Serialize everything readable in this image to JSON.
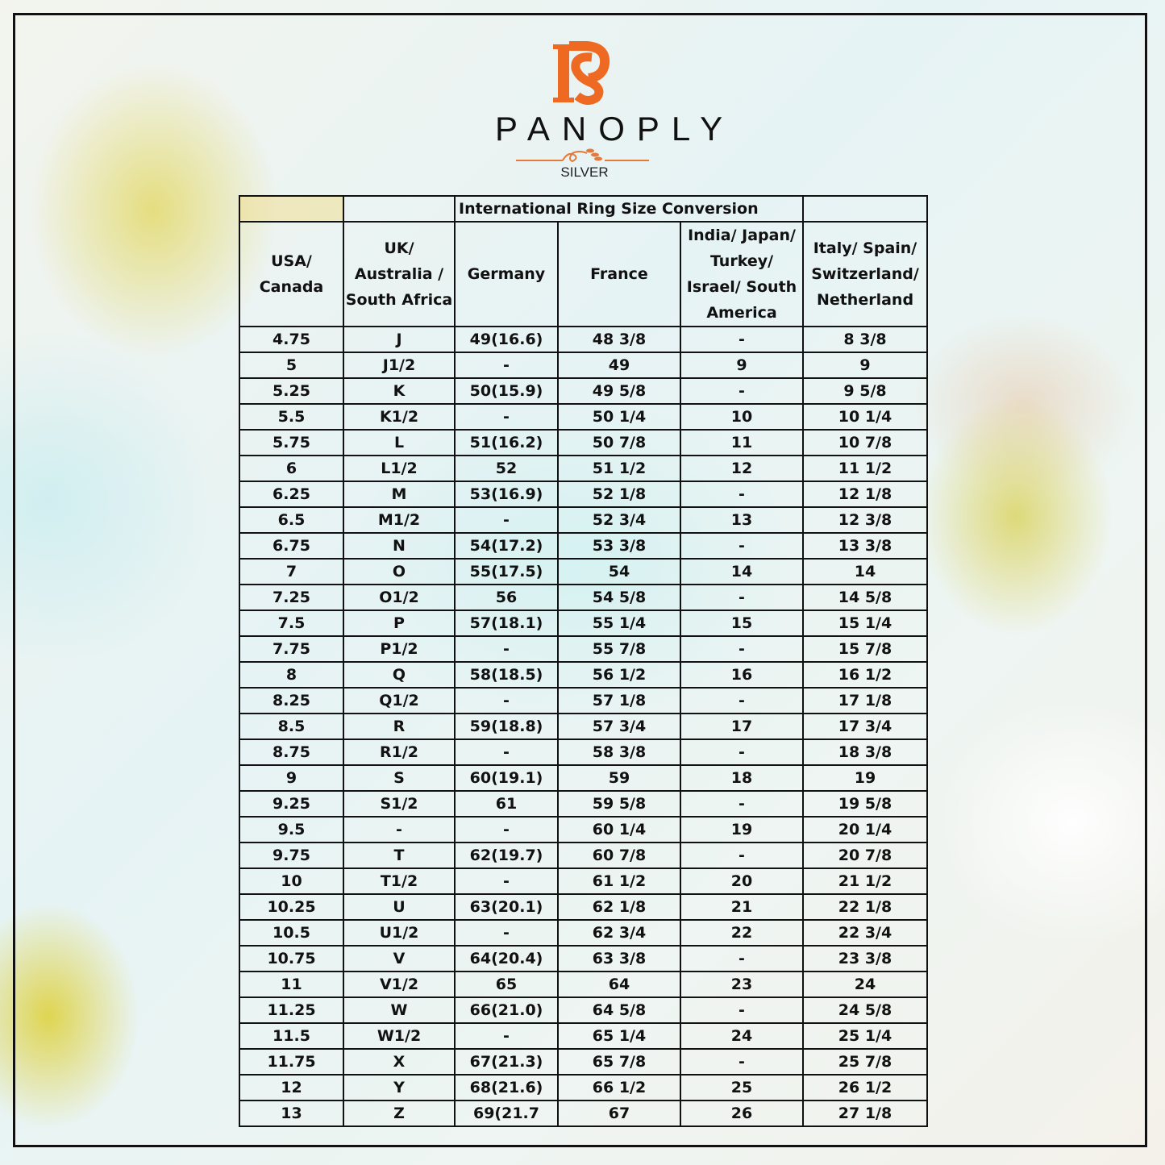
{
  "logo": {
    "monogram": "PS",
    "brand": "PANOPLY",
    "sub": "SILVER",
    "accent": "#ee6a23"
  },
  "table": {
    "title": "International Ring Size Conversion",
    "headers": [
      "USA/ Canada",
      "UK/ Australia / South Africa",
      "Germany",
      "France",
      "India/ Japan/ Turkey/ Israel/ South America",
      "Italy/ Spain/ Switzerland/ Netherland"
    ],
    "rows": [
      [
        "4.75",
        "J",
        "49(16.6)",
        "48 3/8",
        "-",
        "8 3/8"
      ],
      [
        "5",
        "J1/2",
        "-",
        "49",
        "9",
        "9"
      ],
      [
        "5.25",
        "K",
        "50(15.9)",
        "49 5/8",
        "-",
        "9 5/8"
      ],
      [
        "5.5",
        "K1/2",
        "-",
        "50 1/4",
        "10",
        "10 1/4"
      ],
      [
        "5.75",
        "L",
        "51(16.2)",
        "50 7/8",
        "11",
        "10 7/8"
      ],
      [
        "6",
        "L1/2",
        "52",
        "51 1/2",
        "12",
        "11 1/2"
      ],
      [
        "6.25",
        "M",
        "53(16.9)",
        "52 1/8",
        "-",
        "12 1/8"
      ],
      [
        "6.5",
        "M1/2",
        "-",
        "52 3/4",
        "13",
        "12 3/8"
      ],
      [
        "6.75",
        "N",
        "54(17.2)",
        "53 3/8",
        "-",
        "13 3/8"
      ],
      [
        "7",
        "O",
        "55(17.5)",
        "54",
        "14",
        "14"
      ],
      [
        "7.25",
        "O1/2",
        "56",
        "54 5/8",
        "-",
        "14 5/8"
      ],
      [
        "7.5",
        "P",
        "57(18.1)",
        "55 1/4",
        "15",
        "15 1/4"
      ],
      [
        "7.75",
        "P1/2",
        "-",
        "55 7/8",
        "-",
        "15 7/8"
      ],
      [
        "8",
        "Q",
        "58(18.5)",
        "56 1/2",
        "16",
        "16 1/2"
      ],
      [
        "8.25",
        "Q1/2",
        "-",
        "57 1/8",
        "-",
        "17 1/8"
      ],
      [
        "8.5",
        "R",
        "59(18.8)",
        "57 3/4",
        "17",
        "17 3/4"
      ],
      [
        "8.75",
        "R1/2",
        "-",
        "58 3/8",
        "-",
        "18 3/8"
      ],
      [
        "9",
        "S",
        "60(19.1)",
        "59",
        "18",
        "19"
      ],
      [
        "9.25",
        "S1/2",
        "61",
        "59 5/8",
        "-",
        "19 5/8"
      ],
      [
        "9.5",
        "-",
        "-",
        "60 1/4",
        "19",
        "20 1/4"
      ],
      [
        "9.75",
        "T",
        "62(19.7)",
        "60 7/8",
        "-",
        "20 7/8"
      ],
      [
        "10",
        "T1/2",
        "-",
        "61 1/2",
        "20",
        "21 1/2"
      ],
      [
        "10.25",
        "U",
        "63(20.1)",
        "62 1/8",
        "21",
        "22 1/8"
      ],
      [
        "10.5",
        "U1/2",
        "-",
        "62 3/4",
        "22",
        "22 3/4"
      ],
      [
        "10.75",
        "V",
        "64(20.4)",
        "63 3/8",
        "-",
        "23 3/8"
      ],
      [
        "11",
        "V1/2",
        "65",
        "64",
        "23",
        "24"
      ],
      [
        "11.25",
        "W",
        "66(21.0)",
        "64 5/8",
        "-",
        "24 5/8"
      ],
      [
        "11.5",
        "W1/2",
        "-",
        "65 1/4",
        "24",
        "25 1/4"
      ],
      [
        "11.75",
        "X",
        "67(21.3)",
        "65 7/8",
        "-",
        "25 7/8"
      ],
      [
        "12",
        "Y",
        "68(21.6)",
        "66 1/2",
        "25",
        "26 1/2"
      ],
      [
        "13",
        "Z",
        "69(21.7",
        "67",
        "26",
        "27 1/8"
      ]
    ]
  }
}
